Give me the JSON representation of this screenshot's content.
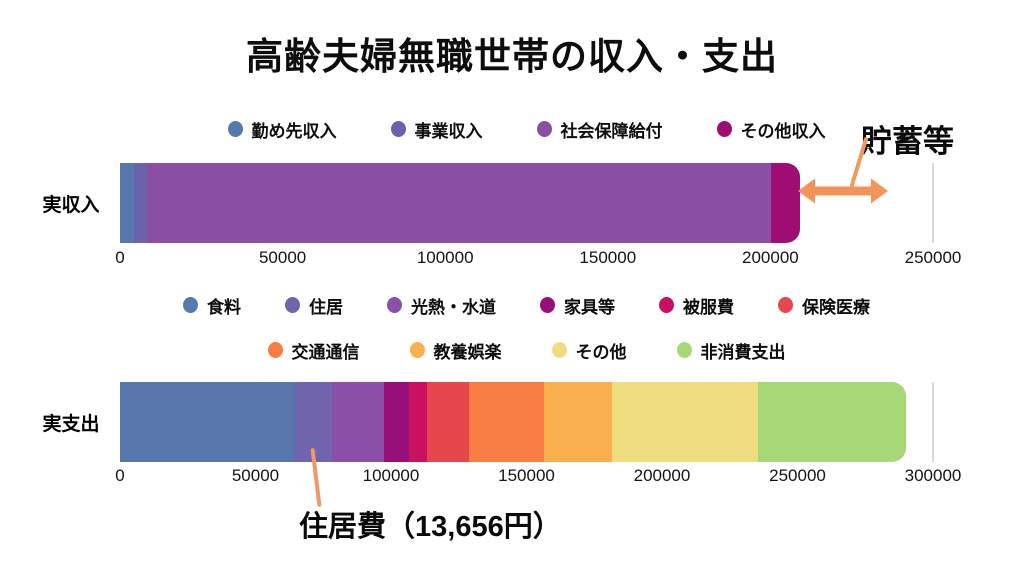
{
  "title": "高齢夫婦無職世帯の収入・支出",
  "annotations": {
    "savings_label": "貯蓄等",
    "housing_label": "住居費（13,656円）"
  },
  "colors": {
    "annotation_orange": "#f2935a",
    "leader_orange": "#ef9a64",
    "gridline_gray": "#d9d9d9",
    "background": "#ffffff",
    "text": "#0d0d0d"
  },
  "chart_data": [
    {
      "type": "bar",
      "orientation": "horizontal",
      "stacked": true,
      "category": "実収入",
      "series": [
        {
          "name": "勤め先収入",
          "value": 4232,
          "color": "#5878ad"
        },
        {
          "name": "事業収入",
          "value": 4045,
          "color": "#6a62ab"
        },
        {
          "name": "社会保障給付",
          "value": 191880,
          "color": "#8a4fa5"
        },
        {
          "name": "その他収入",
          "value": 9041,
          "color": "#9e0e72"
        }
      ],
      "total": 209198,
      "xlim": [
        0,
        250000
      ],
      "xticks": [
        0,
        50000,
        100000,
        150000,
        200000,
        250000
      ],
      "legend_rows": [
        [
          0,
          1,
          2,
          3
        ]
      ],
      "legend_position": "top",
      "grid": "right-border-only",
      "annotation": "貯蓄等"
    },
    {
      "type": "bar",
      "orientation": "horizontal",
      "stacked": true,
      "category": "実支出",
      "series": [
        {
          "name": "食料",
          "value": 64444,
          "color": "#5878ad"
        },
        {
          "name": "住居",
          "value": 13656,
          "color": "#6f64ad"
        },
        {
          "name": "光熱・水道",
          "value": 19267,
          "color": "#8a50a8"
        },
        {
          "name": "家具等",
          "value": 9405,
          "color": "#97107a"
        },
        {
          "name": "被服費",
          "value": 6497,
          "color": "#ca1160"
        },
        {
          "name": "保険医療",
          "value": 15512,
          "color": "#e5474d"
        },
        {
          "name": "交通通信",
          "value": 27576,
          "color": "#f87d43"
        },
        {
          "name": "教養娯楽",
          "value": 25077,
          "color": "#fbb04e"
        },
        {
          "name": "その他",
          "value": 54028,
          "color": "#eedd7f"
        },
        {
          "name": "非消費支出",
          "value": 54519,
          "color": "#a6d878"
        }
      ],
      "total": 289981,
      "xlim": [
        0,
        300000
      ],
      "xticks": [
        0,
        50000,
        100000,
        150000,
        200000,
        250000,
        300000
      ],
      "legend_rows": [
        [
          0,
          1,
          2,
          3,
          4,
          5
        ],
        [
          6,
          7,
          8,
          9
        ]
      ],
      "legend_position": "top",
      "grid": "right-border-only",
      "annotation": "住居費（13,656円）",
      "annotated_segment": "住居"
    }
  ]
}
